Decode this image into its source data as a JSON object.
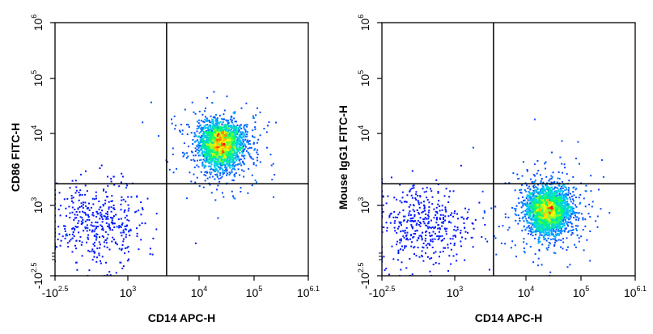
{
  "chart_data": [
    {
      "type": "scatter",
      "subtype": "flow-cytometry-dot-plot",
      "xlabel": "CD14 APC-H",
      "ylabel": "CD86 FITC-H",
      "x_scale": "biexponential",
      "y_scale": "biexponential",
      "xlim": [
        "-10^2.5",
        "10^6.1"
      ],
      "ylim": [
        "-10^2.5",
        "10^6"
      ],
      "x_ticks": [
        {
          "base": "-10",
          "exp": "2.5"
        },
        {
          "base": "10",
          "exp": "3"
        },
        {
          "base": "10",
          "exp": "4"
        },
        {
          "base": "10",
          "exp": "5"
        },
        {
          "base": "10",
          "exp": "6.1"
        }
      ],
      "y_ticks": [
        {
          "base": "-10",
          "exp": "2.5"
        },
        {
          "base": "10",
          "exp": "3"
        },
        {
          "base": "10",
          "exp": "4"
        },
        {
          "base": "10",
          "exp": "5"
        },
        {
          "base": "10",
          "exp": "6"
        }
      ],
      "quadrant_gate": {
        "x": 3500,
        "y": 2000
      },
      "populations": [
        {
          "description": "CD14+ CD86+ main population",
          "center_x": 25000,
          "center_y": 7000,
          "density": "high"
        },
        {
          "description": "CD14- CD86- sparse population",
          "center_x": 450,
          "center_y": 650,
          "density": "low"
        }
      ],
      "grid": false,
      "legend": "none",
      "colormap": [
        "#0000ff",
        "#00c8ff",
        "#00ff66",
        "#ffff00",
        "#ff0000"
      ]
    },
    {
      "type": "scatter",
      "subtype": "flow-cytometry-dot-plot",
      "xlabel": "CD14 APC-H",
      "ylabel": "Mouse IgG1 FITC-H",
      "x_scale": "biexponential",
      "y_scale": "biexponential",
      "xlim": [
        "-10^2.5",
        "10^6.1"
      ],
      "ylim": [
        "-10^2.5",
        "10^6"
      ],
      "x_ticks": [
        {
          "base": "-10",
          "exp": "2.5"
        },
        {
          "base": "10",
          "exp": "3"
        },
        {
          "base": "10",
          "exp": "4"
        },
        {
          "base": "10",
          "exp": "5"
        },
        {
          "base": "10",
          "exp": "6.1"
        }
      ],
      "y_ticks": [
        {
          "base": "-10",
          "exp": "2.5"
        },
        {
          "base": "10",
          "exp": "3"
        },
        {
          "base": "10",
          "exp": "4"
        },
        {
          "base": "10",
          "exp": "5"
        },
        {
          "base": "10",
          "exp": "6"
        }
      ],
      "quadrant_gate": {
        "x": 3500,
        "y": 2000
      },
      "populations": [
        {
          "description": "CD14+ isotype-control main population",
          "center_x": 25000,
          "center_y": 900,
          "density": "high"
        },
        {
          "description": "CD14- sparse population",
          "center_x": 450,
          "center_y": 650,
          "density": "low"
        }
      ],
      "grid": false,
      "legend": "none",
      "colormap": [
        "#0000ff",
        "#00c8ff",
        "#00ff66",
        "#ffff00",
        "#ff0000"
      ]
    }
  ]
}
